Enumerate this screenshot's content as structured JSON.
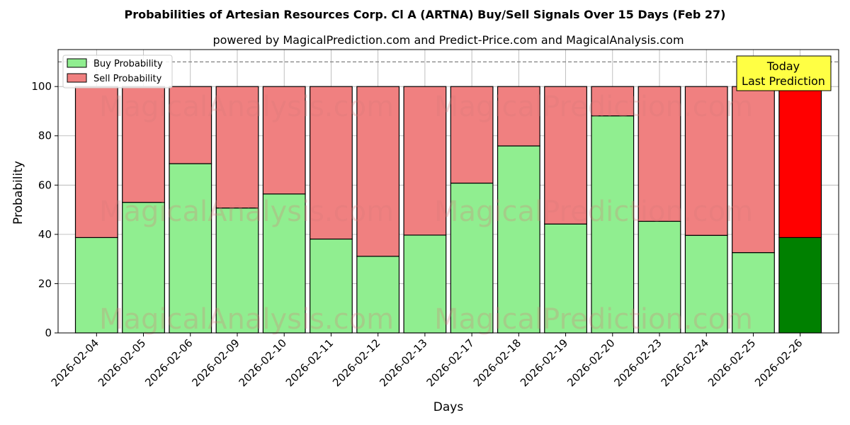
{
  "chart_data": {
    "type": "bar",
    "stacked": true,
    "title": "Probabilities of Artesian Resources Corp. Cl A (ARTNA) Buy/Sell Signals Over 15 Days (Feb 27)",
    "subtitle": "powered by MagicalPrediction.com and Predict-Price.com and MagicalAnalysis.com",
    "xlabel": "Days",
    "ylabel": "Probability",
    "ylim": [
      0,
      115
    ],
    "yticks": [
      0,
      20,
      40,
      60,
      80,
      100
    ],
    "reference_line": 110,
    "grid": true,
    "legend_position": "top-left",
    "categories": [
      "2026-02-04",
      "2026-02-05",
      "2026-02-06",
      "2026-02-09",
      "2026-02-10",
      "2026-02-11",
      "2026-02-12",
      "2026-02-13",
      "2026-02-17",
      "2026-02-18",
      "2026-02-19",
      "2026-02-20",
      "2026-02-23",
      "2026-02-24",
      "2026-02-25",
      "2026-02-26"
    ],
    "series": [
      {
        "name": "Buy Probability",
        "color": "#90ee90",
        "today_color": "#008000",
        "values": [
          38.7,
          53.0,
          68.7,
          50.7,
          56.4,
          38.1,
          31.1,
          39.7,
          60.8,
          75.9,
          44.2,
          88.1,
          45.3,
          39.6,
          32.6,
          38.7
        ]
      },
      {
        "name": "Sell Probability",
        "color": "#f08080",
        "today_color": "#ff0000",
        "values": [
          61.3,
          47.0,
          31.3,
          49.3,
          43.6,
          61.9,
          68.9,
          60.3,
          39.2,
          24.1,
          55.8,
          11.9,
          54.7,
          60.4,
          67.4,
          61.3
        ]
      }
    ],
    "annotation": {
      "lines": [
        "Today",
        "Last Prediction"
      ],
      "color": "#ffff44"
    },
    "watermarks": [
      "MagicalAnalysis.com",
      "MagicalPrediction.com"
    ]
  }
}
